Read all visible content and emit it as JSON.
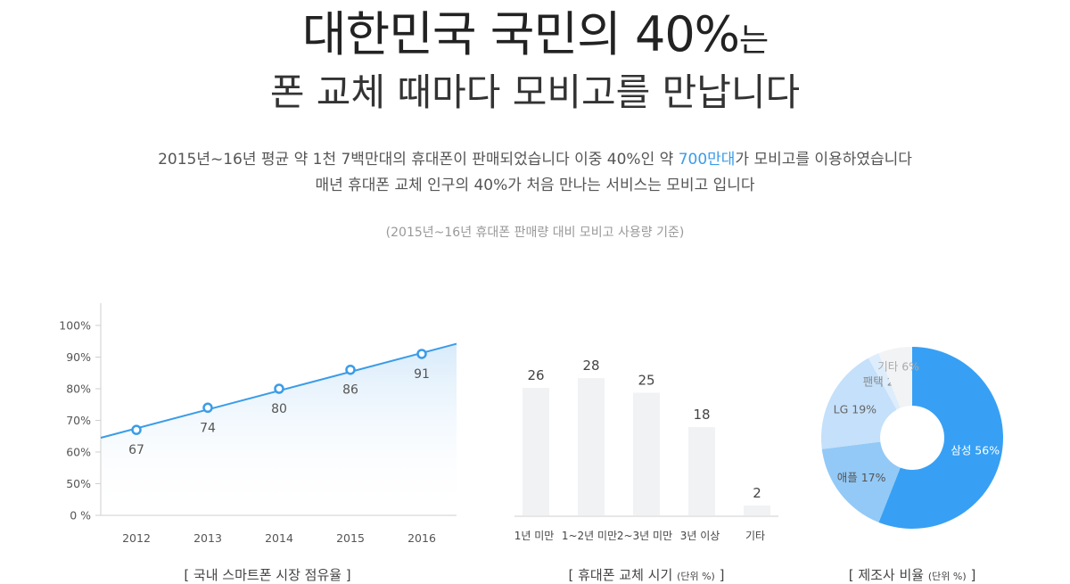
{
  "header": {
    "title_main": "대한민국 국민의 40%",
    "title_suffix": "는",
    "subtitle": "폰 교체 때마다 모비고를 만납니다",
    "desc1_before": "2015년~16년 평균 약 1천 7백만대의 휴대폰이 판매되었습니다 이중 40%인 약 ",
    "desc1_highlight": "700만대",
    "desc1_after": "가 모비고를 이용하였습니다",
    "desc2": "매년 휴대폰 교체 인구의 40%가 처음 만나는 서비스는 모비고 입니다",
    "note": "(2015년~16년 휴대폰 판매량 대비 모비고 사용량 기준)"
  },
  "colors": {
    "accent": "#3a9ce8",
    "bar": "#f1f2f4",
    "highlight": "#3a9ce8"
  },
  "chart_data": [
    {
      "type": "line",
      "title": "[ 국내 스마트폰 시장 점유율 ]",
      "x": [
        "2012",
        "2013",
        "2014",
        "2015",
        "2016"
      ],
      "values": [
        67,
        74,
        80,
        86,
        91
      ],
      "value_labels": [
        "67",
        "74",
        "80",
        "86",
        "91"
      ],
      "yticks": [
        "0 %",
        "50%",
        "60%",
        "70%",
        "80%",
        "90%",
        "100%"
      ],
      "ytick_values": [
        0,
        50,
        60,
        70,
        80,
        90,
        100
      ],
      "ylim": [
        0,
        100
      ],
      "trend_start": 64.5,
      "trend_end": 94.2
    },
    {
      "type": "bar",
      "title": "[ 휴대폰 교체 시기",
      "unit": "(단위 %)",
      "title_end": "]",
      "categories": [
        "1년 미만",
        "1~2년 미만",
        "2~3년 미만",
        "3년 이상",
        "기타"
      ],
      "values": [
        26,
        28,
        25,
        18,
        2
      ],
      "value_labels": [
        "26",
        "28",
        "25",
        "18",
        "2"
      ]
    },
    {
      "type": "pie",
      "title": "[ 제조사 비율",
      "unit": "(단위 %)",
      "title_end": "]",
      "slices": [
        {
          "label": "삼성 56%",
          "value": 56,
          "color": "#37a0f4",
          "text_color": "#ffffff"
        },
        {
          "label": "애플 17%",
          "value": 17,
          "color": "#93c9f6",
          "text_color": "#555555"
        },
        {
          "label": "LG 19%",
          "value": 19,
          "color": "#c4e0fa",
          "text_color": "#666666"
        },
        {
          "label": "팬택 2%",
          "value": 2,
          "color": "#deedfb",
          "text_color": "#888888"
        },
        {
          "label": "기타 6%",
          "value": 6,
          "color": "#f2f3f5",
          "text_color": "#aaaaaa"
        }
      ]
    }
  ]
}
